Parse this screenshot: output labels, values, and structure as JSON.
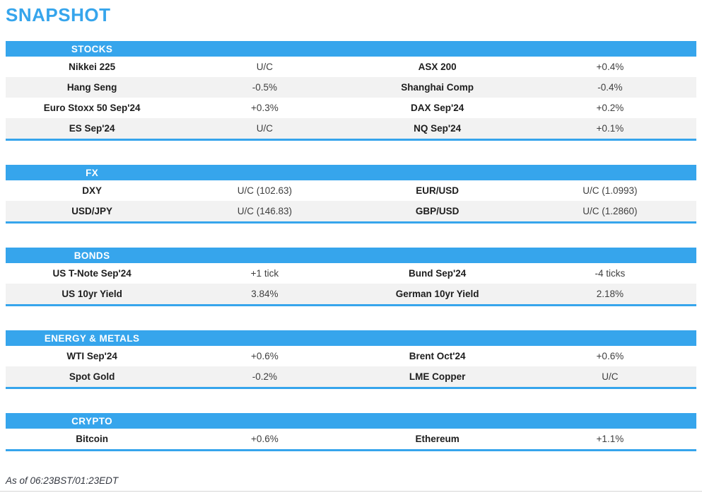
{
  "page": {
    "title": "SNAPSHOT",
    "footer": "As of 06:23BST/01:23EDT"
  },
  "colors": {
    "accent_blue": "#36a5ec",
    "row_alt": "#f2f2f2",
    "name_text": "#1d1d1d",
    "value_text": "#3f3f3f",
    "footer_text": "#333740"
  },
  "sections": [
    {
      "id": "stocks",
      "label": "STOCKS",
      "rows": [
        [
          "Nikkei 225",
          "U/C",
          "ASX 200",
          "+0.4%"
        ],
        [
          "Hang Seng",
          "-0.5%",
          "Shanghai Comp",
          "-0.4%"
        ],
        [
          "Euro Stoxx 50 Sep'24",
          "+0.3%",
          "DAX Sep'24",
          "+0.2%"
        ],
        [
          "ES Sep'24",
          "U/C",
          "NQ Sep'24",
          "+0.1%"
        ]
      ]
    },
    {
      "id": "fx",
      "label": "FX",
      "rows": [
        [
          "DXY",
          "U/C (102.63)",
          "EUR/USD",
          "U/C (1.0993)"
        ],
        [
          "USD/JPY",
          "U/C (146.83)",
          "GBP/USD",
          "U/C (1.2860)"
        ]
      ]
    },
    {
      "id": "bonds",
      "label": "BONDS",
      "rows": [
        [
          "US T-Note Sep'24",
          "+1 tick",
          "Bund Sep'24",
          "-4 ticks"
        ],
        [
          "US 10yr Yield",
          "3.84%",
          "German 10yr Yield",
          "2.18%"
        ]
      ]
    },
    {
      "id": "energy-metals",
      "label": "ENERGY & METALS",
      "rows": [
        [
          "WTI Sep'24",
          "+0.6%",
          "Brent Oct'24",
          "+0.6%"
        ],
        [
          "Spot Gold",
          "-0.2%",
          "LME Copper",
          "U/C"
        ]
      ]
    },
    {
      "id": "crypto",
      "label": "CRYPTO",
      "rows": [
        [
          "Bitcoin",
          "+0.6%",
          "Ethereum",
          "+1.1%"
        ]
      ]
    }
  ]
}
